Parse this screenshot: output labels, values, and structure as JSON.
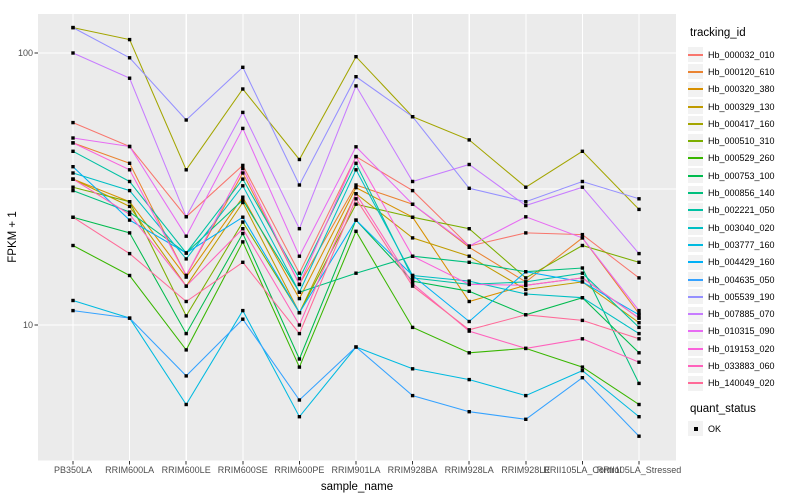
{
  "chart_data": {
    "type": "line",
    "title": "",
    "xlabel": "sample_name",
    "ylabel": "FPKM + 1",
    "y_scale": "log10",
    "ylim": [
      3.16,
      139
    ],
    "grid": "on",
    "legend_position": "right",
    "panel_color": "#EBEBEB",
    "gridline_color": "#FFFFFF",
    "point_color": "#000000",
    "y_ticks": [
      {
        "label": "100",
        "value": 100
      },
      {
        "label": "10",
        "value": 10
      }
    ],
    "y_minor_gridlines": [
      31.62,
      3.162
    ],
    "legend": {
      "tracking_title": "tracking_id",
      "quant_title": "quant_status",
      "quant_label": "OK"
    },
    "categories": [
      "PB350LA",
      "RRIM600LA",
      "RRIM600LE",
      "RRIM600SE",
      "RRIM600PE",
      "RRIM901LA",
      "RRIM928BA",
      "RRIM928LA",
      "RRIM928LE",
      "RRII105LA_Control",
      "RRII105LA_Stressed"
    ],
    "series": [
      {
        "name": "Hb_000032_010",
        "color": "#F8766D",
        "values": [
          55.5,
          45.3,
          25.0,
          38.6,
          15.5,
          41.6,
          31.2,
          19.5,
          21.8,
          21.5,
          14.9
        ]
      },
      {
        "name": "Hb_000120_610",
        "color": "#EA8331",
        "values": [
          46.7,
          39.3,
          15.2,
          36.2,
          14.1,
          32.7,
          27.8,
          19.3,
          14.4,
          20.9,
          11.0
        ]
      },
      {
        "name": "Hb_000320_380",
        "color": "#D89000",
        "values": [
          34.4,
          28.4,
          15.0,
          29.5,
          12.5,
          32.0,
          24.9,
          12.2,
          14.0,
          14.9,
          10.6
        ]
      },
      {
        "name": "Hb_000329_130",
        "color": "#C09B00",
        "values": [
          34.4,
          27.3,
          13.9,
          28.2,
          11.1,
          30.4,
          20.9,
          17.9,
          13.5,
          14.4,
          10.2
        ]
      },
      {
        "name": "Hb_000417_160",
        "color": "#A3A500",
        "values": [
          124.0,
          112.0,
          37.2,
          73.7,
          40.6,
          96.9,
          58.3,
          47.9,
          32.1,
          43.5,
          26.6
        ]
      },
      {
        "name": "Hb_000510_310",
        "color": "#7CAE00",
        "values": [
          32.1,
          28.4,
          10.8,
          23.9,
          11.1,
          27.8,
          24.9,
          22.6,
          14.9,
          19.6,
          17.0
        ]
      },
      {
        "name": "Hb_000529_260",
        "color": "#39B600",
        "values": [
          19.6,
          15.2,
          8.1,
          20.2,
          7.0,
          22.1,
          9.8,
          7.9,
          8.2,
          7.0,
          5.1
        ]
      },
      {
        "name": "Hb_000753_100",
        "color": "#00BB4E",
        "values": [
          24.9,
          21.8,
          9.3,
          21.7,
          7.5,
          24.3,
          14.5,
          13.3,
          10.9,
          12.6,
          7.9
        ]
      },
      {
        "name": "Hb_000856_140",
        "color": "#00BF7D",
        "values": [
          31.2,
          26.0,
          18.4,
          28.8,
          13.2,
          15.5,
          17.9,
          17.0,
          15.7,
          16.2,
          6.1
        ]
      },
      {
        "name": "Hb_002221_050",
        "color": "#00C1A3",
        "values": [
          43.5,
          33.7,
          18.4,
          34.4,
          14.8,
          39.3,
          14.9,
          14.1,
          14.4,
          15.5,
          9.8
        ]
      },
      {
        "name": "Hb_003040_020",
        "color": "#00BFC4",
        "values": [
          36.2,
          31.2,
          17.5,
          32.5,
          13.2,
          37.2,
          15.2,
          14.5,
          13.0,
          12.6,
          9.3
        ]
      },
      {
        "name": "Hb_003777_160",
        "color": "#00BAE0",
        "values": [
          12.3,
          10.6,
          5.1,
          11.3,
          4.6,
          8.3,
          6.9,
          6.3,
          5.5,
          6.8,
          4.6
        ]
      },
      {
        "name": "Hb_004429_160",
        "color": "#00B0F6",
        "values": [
          38.2,
          24.3,
          18.4,
          24.9,
          11.1,
          24.3,
          15.2,
          10.3,
          15.7,
          14.4,
          10.9
        ]
      },
      {
        "name": "Hb_004635_050",
        "color": "#35A2FF",
        "values": [
          11.3,
          10.6,
          6.5,
          10.5,
          5.3,
          8.3,
          5.5,
          4.8,
          4.5,
          6.4,
          3.9
        ]
      },
      {
        "name": "Hb_005539_190",
        "color": "#9590FF",
        "values": [
          124.0,
          96.0,
          56.7,
          88.6,
          32.7,
          81.8,
          58.3,
          31.8,
          28.4,
          33.7,
          29.1
        ]
      },
      {
        "name": "Hb_007885_070",
        "color": "#C77CFF",
        "values": [
          100.0,
          80.8,
          25.0,
          60.5,
          22.6,
          75.7,
          33.7,
          38.9,
          27.5,
          32.1,
          18.3
        ]
      },
      {
        "name": "Hb_010315_090",
        "color": "#E76BF3",
        "values": [
          48.7,
          45.3,
          21.2,
          52.8,
          17.9,
          45.2,
          27.8,
          19.5,
          25.0,
          20.9,
          11.3
        ]
      },
      {
        "name": "Hb_019153_020",
        "color": "#FA62DB",
        "values": [
          46.7,
          37.2,
          15.2,
          37.6,
          14.1,
          41.6,
          17.9,
          14.1,
          14.0,
          14.9,
          10.6
        ]
      },
      {
        "name": "Hb_033883_060",
        "color": "#FF62BC",
        "values": [
          34.4,
          25.5,
          13.9,
          22.6,
          10.0,
          30.4,
          14.2,
          9.5,
          8.2,
          8.9,
          7.3
        ]
      },
      {
        "name": "Hb_140049_020",
        "color": "#FF6A98",
        "values": [
          24.9,
          18.3,
          12.2,
          17.0,
          9.3,
          29.1,
          13.9,
          9.6,
          10.9,
          10.4,
          8.9
        ]
      }
    ]
  }
}
